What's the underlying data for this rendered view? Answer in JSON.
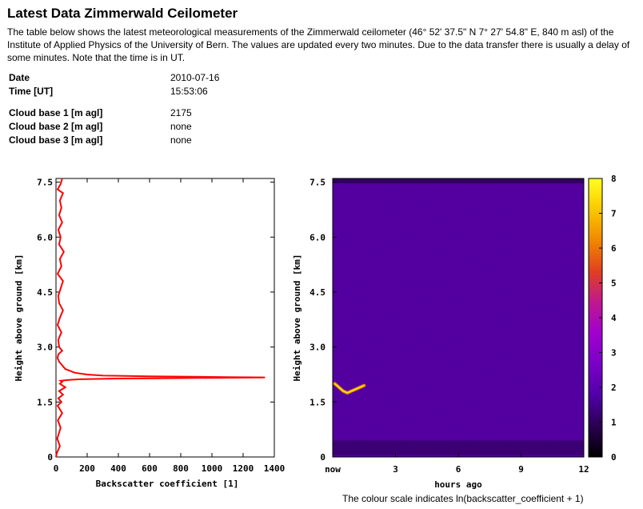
{
  "page": {
    "title": "Latest Data Zimmerwald Ceilometer",
    "intro": "The table below shows the latest meteorological measurements of the Zimmerwald ceilometer (46° 52' 37.5\" N 7° 27' 54.8\" E, 840 m asl) of the Institute of Applied Physics of the University of Bern. The values are updated every two minutes. Due to the data transfer there is usually a delay of some minutes. Note that the time is in UT."
  },
  "measurements": [
    {
      "label": "Date",
      "value": "2010-07-16"
    },
    {
      "label": "Time [UT]",
      "value": "15:53:06"
    },
    {
      "label": "Cloud base 1 [m agl]",
      "value": "2175"
    },
    {
      "label": "Cloud base 2 [m agl]",
      "value": "none"
    },
    {
      "label": "Cloud base 3 [m agl]",
      "value": "none"
    }
  ],
  "colors": {
    "profile_line": "#ff0000",
    "colorbar_scale": [
      "#000000",
      "#2a0050",
      "#5000a8",
      "#7a00c8",
      "#a000d0",
      "#c01890",
      "#e04020",
      "#f08800",
      "#fac800",
      "#ffff20"
    ]
  },
  "chart_data": [
    {
      "type": "line",
      "xlabel": "Backscatter coefficient [1]",
      "ylabel": "Height above ground [km]",
      "xlim": [
        0,
        1400
      ],
      "ylim": [
        0,
        7.6
      ],
      "xticks": [
        "0",
        "200",
        "400",
        "600",
        "800",
        "1000",
        "1200",
        "1400"
      ],
      "yticks": [
        "0",
        "1.5",
        "3.0",
        "4.5",
        "6.0",
        "7.5"
      ],
      "series": [
        {
          "x": [
            0,
            5,
            25,
            8,
            30,
            12,
            40,
            10,
            35,
            15,
            45,
            20,
            60,
            25,
            40,
            30,
            80,
            150,
            250,
            400,
            700,
            1000,
            1340,
            1100,
            600,
            300,
            200,
            120,
            60,
            40,
            20,
            10,
            15,
            40,
            20,
            15,
            35,
            10,
            25,
            45,
            20,
            15,
            30,
            45,
            10,
            35,
            25,
            50,
            20,
            30,
            15,
            40,
            20,
            35,
            25,
            45,
            10,
            30,
            40
          ],
          "y": [
            0.0,
            0.1,
            0.3,
            0.5,
            0.8,
            1.0,
            1.2,
            1.4,
            1.5,
            1.6,
            1.7,
            1.8,
            1.9,
            2.0,
            2.05,
            2.08,
            2.1,
            2.12,
            2.13,
            2.14,
            2.15,
            2.16,
            2.17,
            2.18,
            2.2,
            2.22,
            2.25,
            2.3,
            2.4,
            2.5,
            2.6,
            2.7,
            2.8,
            2.9,
            3.0,
            3.2,
            3.4,
            3.6,
            3.8,
            4.0,
            4.2,
            4.4,
            4.6,
            4.8,
            5.0,
            5.2,
            5.4,
            5.6,
            5.8,
            6.0,
            6.2,
            6.4,
            6.6,
            6.8,
            7.0,
            7.2,
            7.3,
            7.45,
            7.6
          ]
        }
      ]
    },
    {
      "type": "heatmap",
      "xlabel": "hours ago",
      "ylabel": "Height above ground [km]",
      "xlim": [
        0,
        12
      ],
      "ylim": [
        0,
        7.6
      ],
      "xticks": [
        "now",
        "3",
        "6",
        "9",
        "12"
      ],
      "yticks": [
        "0",
        "1.5",
        "3.0",
        "4.5",
        "6.0",
        "7.5"
      ],
      "colorbar": {
        "min": 0,
        "max": 8,
        "ticks": [
          "0",
          "1",
          "2",
          "3",
          "4",
          "5",
          "6",
          "7",
          "8"
        ]
      },
      "background_value": 2.2,
      "features": [
        {
          "name": "cloud layer",
          "x": [
            0.1,
            0.3,
            0.5,
            0.7,
            0.9,
            1.1,
            1.3,
            1.5
          ],
          "y": [
            2.0,
            1.9,
            1.8,
            1.75,
            1.8,
            1.85,
            1.9,
            1.95
          ],
          "value": 6.5
        }
      ],
      "caption": "The colour scale indicates ln(backscatter_coefficient + 1)"
    }
  ]
}
